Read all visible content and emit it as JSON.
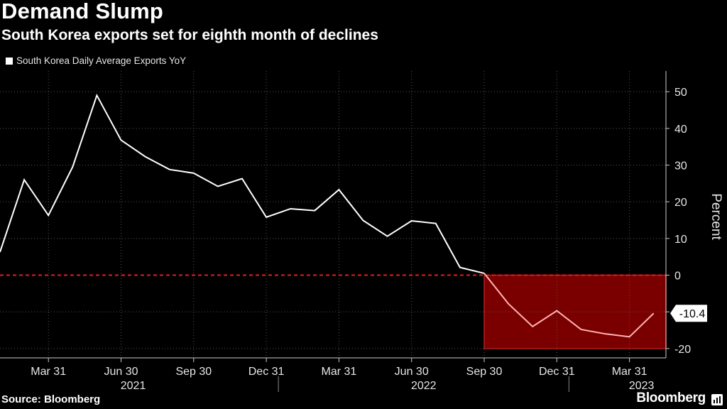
{
  "header": {
    "title": "Demand Slump",
    "subtitle": "South Korea exports set for eighth month of declines"
  },
  "legend": {
    "label": "South Korea Daily Average Exports YoY",
    "color": "#ffffff"
  },
  "footer": {
    "source": "Source: Bloomberg",
    "brand": "Bloomberg"
  },
  "colors": {
    "line": "#ffffff",
    "line_in_region": "#ffb3b3",
    "zero_line": "#e0201b",
    "region_fill": "#7a0000",
    "region_border": "#d01010",
    "grid": "#555555"
  },
  "chart_data": {
    "type": "line",
    "title": "Demand Slump",
    "subtitle": "South Korea exports set for eighth month of declines",
    "ylabel": "Percent",
    "xlabel": "",
    "ylim": [
      -22,
      55
    ],
    "yticks": [
      -20,
      -10,
      0,
      10,
      20,
      30,
      40,
      50
    ],
    "ytick_labels": [
      "-20",
      "-10",
      "0",
      "10",
      "20",
      "30",
      "40",
      "50"
    ],
    "x_start": "2021-01",
    "x_end": "2023-05",
    "x_ticks": [
      {
        "label": "Mar 31",
        "month": 2
      },
      {
        "label": "Jun 30",
        "month": 5
      },
      {
        "label": "Sep 30",
        "month": 8
      },
      {
        "label": "Dec 31",
        "month": 11
      },
      {
        "label": "Mar 31",
        "month": 14
      },
      {
        "label": "Jun 30",
        "month": 17
      },
      {
        "label": "Sep 30",
        "month": 20
      },
      {
        "label": "Dec 31",
        "month": 23
      },
      {
        "label": "Mar 31",
        "month": 26
      }
    ],
    "year_labels": [
      {
        "label": "2021",
        "month": 5.5
      },
      {
        "label": "2022",
        "month": 17.5
      },
      {
        "label": "2023",
        "month": 26.5
      }
    ],
    "year_separators": [
      11.5,
      23.5
    ],
    "series": [
      {
        "name": "South Korea Daily Average Exports YoY",
        "x": [
          0,
          1,
          2,
          3,
          4,
          5,
          6,
          7,
          8,
          9,
          10,
          11,
          12,
          13,
          14,
          15,
          16,
          17,
          18,
          19,
          20,
          21,
          22,
          23,
          24,
          25,
          26,
          27
        ],
        "values": [
          6.3,
          26.0,
          16.3,
          29.5,
          49.0,
          36.8,
          32.3,
          28.8,
          27.8,
          24.2,
          26.3,
          15.8,
          18.1,
          17.6,
          23.3,
          14.9,
          10.6,
          14.8,
          14.1,
          2.1,
          0.5,
          -7.8,
          -14.0,
          -9.7,
          -14.8,
          -16.0,
          -16.8,
          -10.4
        ]
      }
    ],
    "reference_line": {
      "y": 0,
      "style": "dashed"
    },
    "highlight_region": {
      "x_from": 20,
      "x_to": 27.5,
      "y_from": -20,
      "y_to": 0
    },
    "last_value_label": "-10.4"
  }
}
